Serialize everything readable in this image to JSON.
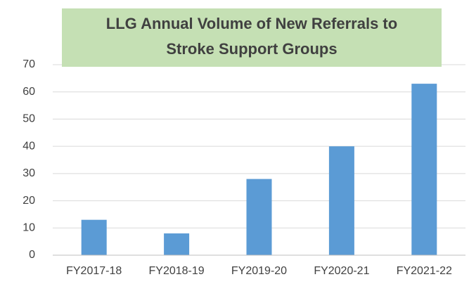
{
  "chart_data": {
    "type": "bar",
    "title": [
      "LLG Annual Volume of New Referrals to",
      "Stroke Support Groups"
    ],
    "categories": [
      "FY2017-18",
      "FY2018-19",
      "FY2019-20",
      "FY2020-21",
      "FY2021-22"
    ],
    "values": [
      13,
      8,
      28,
      40,
      63
    ],
    "color": "#5b9bd5",
    "ylim": [
      0,
      70
    ],
    "yticks": [
      0,
      10,
      20,
      30,
      40,
      50,
      60,
      70
    ],
    "grid": true
  }
}
